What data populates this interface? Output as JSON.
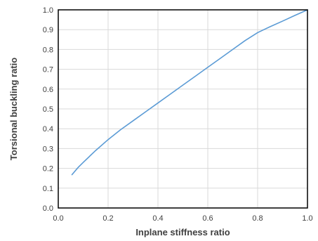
{
  "chart_data": {
    "type": "line",
    "title": "",
    "xlabel": "Inplane stiffness ratio",
    "ylabel": "Torsional buckling ratio",
    "xlim": [
      0.0,
      1.0
    ],
    "ylim": [
      0.0,
      1.0
    ],
    "x_ticks": [
      "0.0",
      "0.2",
      "0.4",
      "0.6",
      "0.8",
      "1.0"
    ],
    "y_ticks": [
      "0.0",
      "0.1",
      "0.2",
      "0.3",
      "0.4",
      "0.5",
      "0.6",
      "0.7",
      "0.8",
      "0.9",
      "1.0"
    ],
    "grid": true,
    "legend": "none",
    "series": [
      {
        "color": "#5B9BD5",
        "x": [
          0.055,
          0.08,
          0.1,
          0.15,
          0.2,
          0.25,
          0.3,
          0.35,
          0.4,
          0.45,
          0.5,
          0.55,
          0.6,
          0.65,
          0.7,
          0.75,
          0.8,
          0.85,
          0.9,
          0.95,
          1.0
        ],
        "y": [
          0.168,
          0.205,
          0.23,
          0.29,
          0.345,
          0.395,
          0.44,
          0.485,
          0.53,
          0.575,
          0.62,
          0.665,
          0.71,
          0.755,
          0.8,
          0.845,
          0.885,
          0.915,
          0.943,
          0.972,
          1.0
        ]
      }
    ]
  }
}
